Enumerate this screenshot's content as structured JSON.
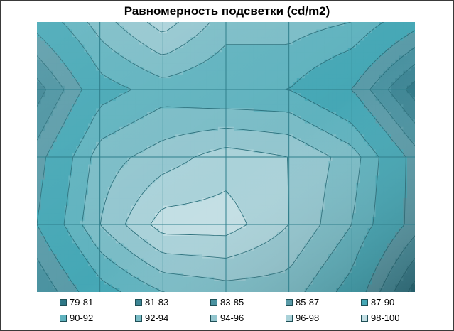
{
  "chart_data": {
    "type": "contour",
    "title": "Равномерность подсветки (cd/m2)",
    "x": [
      1,
      2,
      3,
      4,
      5,
      6,
      7
    ],
    "y": [
      1,
      2,
      3,
      4,
      5
    ],
    "grid": true,
    "legend_position": "bottom",
    "values": [
      [
        88,
        93,
        97,
        93,
        93,
        92,
        88
      ],
      [
        82,
        89,
        91,
        90,
        90,
        87,
        80
      ],
      [
        86,
        93,
        95,
        97,
        96,
        93,
        86
      ],
      [
        87,
        94,
        99,
        99,
        96,
        92,
        86
      ],
      [
        83,
        89,
        92,
        93,
        93,
        89,
        80
      ]
    ],
    "bands": [
      {
        "label": "79-81",
        "min": 79,
        "max": 81,
        "color": "#2e7786"
      },
      {
        "label": "81-83",
        "min": 81,
        "max": 83,
        "color": "#3d8594"
      },
      {
        "label": "83-85",
        "min": 83,
        "max": 85,
        "color": "#4a92a0"
      },
      {
        "label": "85-87",
        "min": 85,
        "max": 87,
        "color": "#5a9ba8"
      },
      {
        "label": "87-90",
        "min": 87,
        "max": 90,
        "color": "#45a7b5"
      },
      {
        "label": "90-92",
        "min": 90,
        "max": 92,
        "color": "#5fb2be"
      },
      {
        "label": "92-94",
        "min": 92,
        "max": 94,
        "color": "#7abcc6"
      },
      {
        "label": "94-96",
        "min": 94,
        "max": 96,
        "color": "#93c6cf"
      },
      {
        "label": "96-98",
        "min": 96,
        "max": 98,
        "color": "#aad2d9"
      },
      {
        "label": "98-100",
        "min": 98,
        "max": 100,
        "color": "#c3dfe4"
      }
    ],
    "colors": {
      "grid": "#2f7f8c",
      "frame": "#3a3a3a"
    }
  }
}
